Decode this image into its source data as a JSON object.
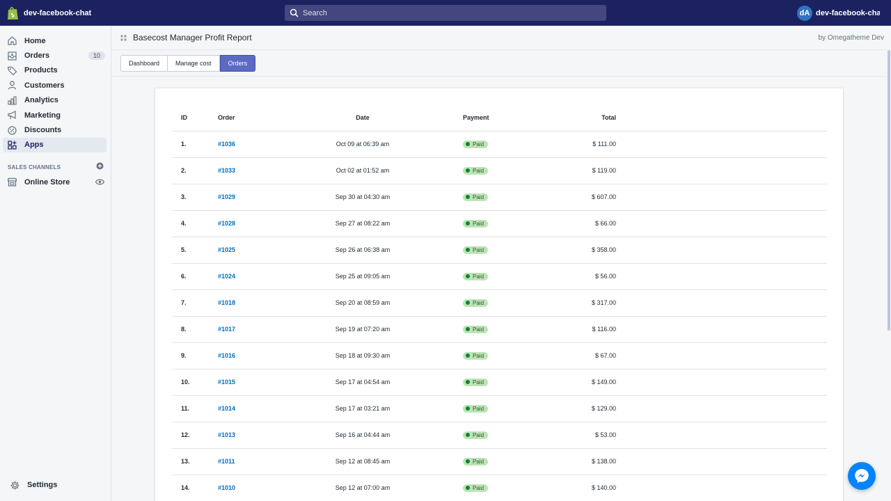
{
  "topbar": {
    "store_name": "dev-facebook-chat",
    "search_placeholder": "Search",
    "avatar_initials": "dA",
    "account_name": "dev-facebook-chat Ad..."
  },
  "sidebar": {
    "items": [
      {
        "label": "Home",
        "icon": "home-icon"
      },
      {
        "label": "Orders",
        "icon": "orders-icon",
        "badge": "10"
      },
      {
        "label": "Products",
        "icon": "tag-icon"
      },
      {
        "label": "Customers",
        "icon": "person-icon"
      },
      {
        "label": "Analytics",
        "icon": "bar-chart-icon"
      },
      {
        "label": "Marketing",
        "icon": "megaphone-icon"
      },
      {
        "label": "Discounts",
        "icon": "discount-icon"
      },
      {
        "label": "Apps",
        "icon": "apps-icon",
        "active": true
      }
    ],
    "sales_channels_title": "SALES CHANNELS",
    "online_store_label": "Online Store",
    "settings_label": "Settings"
  },
  "app": {
    "title": "Basecost Manager Profit Report",
    "by": "by Omegatheme Dev",
    "tabs": [
      {
        "label": "Dashboard",
        "active": false
      },
      {
        "label": "Manage cost",
        "active": false
      },
      {
        "label": "Orders",
        "active": true
      }
    ]
  },
  "table": {
    "headers": {
      "id": "ID",
      "order": "Order",
      "date": "Date",
      "payment": "Payment",
      "total": "Total"
    },
    "rows": [
      {
        "id": "1.",
        "order": "#1036",
        "date": "Oct 09 at 06:39 am",
        "payment": "Paid",
        "total": "$ 111.00"
      },
      {
        "id": "2.",
        "order": "#1033",
        "date": "Oct 02 at 01:52 am",
        "payment": "Paid",
        "total": "$ 119.00"
      },
      {
        "id": "3.",
        "order": "#1029",
        "date": "Sep 30 at 04:30 am",
        "payment": "Paid",
        "total": "$ 607.00"
      },
      {
        "id": "4.",
        "order": "#1028",
        "date": "Sep 27 at 08:22 am",
        "payment": "Paid",
        "total": "$ 66.00"
      },
      {
        "id": "5.",
        "order": "#1025",
        "date": "Sep 26 at 06:38 am",
        "payment": "Paid",
        "total": "$ 358.00"
      },
      {
        "id": "6.",
        "order": "#1024",
        "date": "Sep 25 at 09:05 am",
        "payment": "Paid",
        "total": "$ 56.00"
      },
      {
        "id": "7.",
        "order": "#1018",
        "date": "Sep 20 at 08:59 am",
        "payment": "Paid",
        "total": "$ 317.00"
      },
      {
        "id": "8.",
        "order": "#1017",
        "date": "Sep 19 at 07:20 am",
        "payment": "Paid",
        "total": "$ 116.00"
      },
      {
        "id": "9.",
        "order": "#1016",
        "date": "Sep 18 at 09:30 am",
        "payment": "Paid",
        "total": "$ 67.00"
      },
      {
        "id": "10.",
        "order": "#1015",
        "date": "Sep 17 at 04:54 am",
        "payment": "Paid",
        "total": "$ 149.00"
      },
      {
        "id": "11.",
        "order": "#1014",
        "date": "Sep 17 at 03:21 am",
        "payment": "Paid",
        "total": "$ 129.00"
      },
      {
        "id": "12.",
        "order": "#1013",
        "date": "Sep 16 at 04:44 am",
        "payment": "Paid",
        "total": "$ 53.00"
      },
      {
        "id": "13.",
        "order": "#1011",
        "date": "Sep 12 at 08:45 am",
        "payment": "Paid",
        "total": "$ 138.00"
      },
      {
        "id": "14.",
        "order": "#1010",
        "date": "Sep 12 at 07:00 am",
        "payment": "Paid",
        "total": "$ 140.00"
      }
    ]
  },
  "colors": {
    "topbar": "#1c2260",
    "primary_tab": "#5c6ac4",
    "link": "#006fbb",
    "paid_badge": "#bbe5b3",
    "messenger": "#0084ff"
  }
}
